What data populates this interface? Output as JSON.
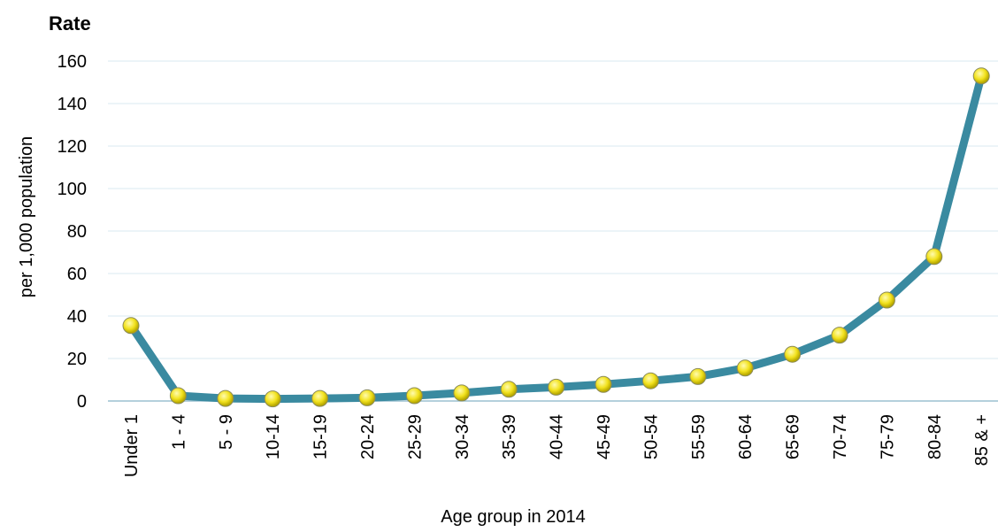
{
  "chart_data": {
    "type": "line",
    "title": "Rate",
    "xlabel": "Age group in 2014",
    "ylabel": "per 1,000 population",
    "ylim": [
      0,
      160
    ],
    "yticks": [
      0,
      20,
      40,
      60,
      80,
      100,
      120,
      140,
      160
    ],
    "grid": true,
    "categories": [
      "Under 1",
      "1 - 4",
      "5 - 9",
      "10-14",
      "15-19",
      "20-24",
      "25-29",
      "30-34",
      "35-39",
      "40-44",
      "45-49",
      "50-54",
      "55-59",
      "60-64",
      "65-69",
      "70-74",
      "75-79",
      "80-84",
      "85 & +"
    ],
    "series": [
      {
        "values": [
          35.5,
          2.5,
          1.2,
          1.0,
          1.2,
          1.5,
          2.5,
          3.8,
          5.5,
          6.5,
          7.8,
          9.5,
          11.5,
          15.5,
          22.0,
          31.0,
          47.5,
          68.0,
          153.0
        ]
      }
    ],
    "colors": {
      "line": "#3a8aa0",
      "marker_fill": "#f2e21e",
      "marker_edge": "#b8a800",
      "grid": "#d9e8f0",
      "axis": "#9cc0d0"
    }
  }
}
